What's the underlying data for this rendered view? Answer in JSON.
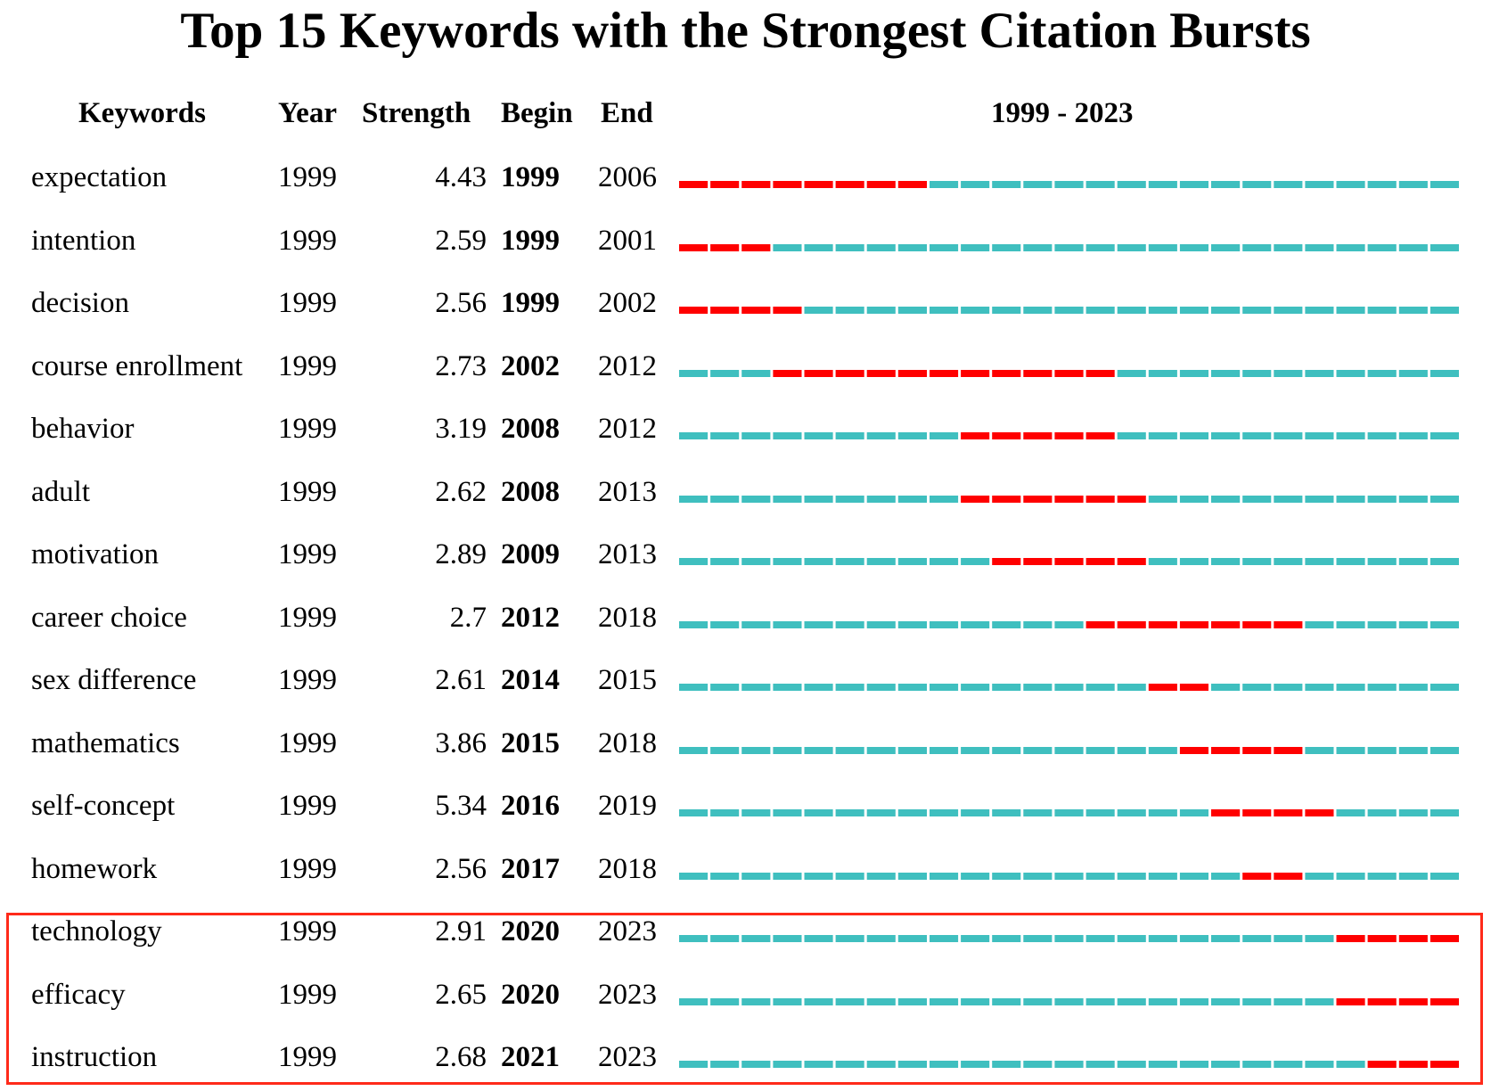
{
  "chart_data": {
    "type": "table",
    "title": "Top 15 Keywords with the Strongest Citation Bursts",
    "columns": [
      "Keywords",
      "Year",
      "Strength",
      "Begin",
      "End"
    ],
    "timeline_label": "1999 - 2023",
    "range": [
      1999,
      2023
    ],
    "colors": {
      "burst": "#ff0000",
      "baseline": "#3fbfbf",
      "highlight_border": "#ff2a1a"
    },
    "rows": [
      {
        "keyword": "expectation",
        "year": "1999",
        "strength": "4.43",
        "begin": "1999",
        "end": "2006"
      },
      {
        "keyword": "intention",
        "year": "1999",
        "strength": "2.59",
        "begin": "1999",
        "end": "2001"
      },
      {
        "keyword": "decision",
        "year": "1999",
        "strength": "2.56",
        "begin": "1999",
        "end": "2002"
      },
      {
        "keyword": "course enrollment",
        "year": "1999",
        "strength": "2.73",
        "begin": "2002",
        "end": "2012"
      },
      {
        "keyword": "behavior",
        "year": "1999",
        "strength": "3.19",
        "begin": "2008",
        "end": "2012"
      },
      {
        "keyword": "adult",
        "year": "1999",
        "strength": "2.62",
        "begin": "2008",
        "end": "2013"
      },
      {
        "keyword": "motivation",
        "year": "1999",
        "strength": "2.89",
        "begin": "2009",
        "end": "2013"
      },
      {
        "keyword": "career choice",
        "year": "1999",
        "strength": "2.7",
        "begin": "2012",
        "end": "2018"
      },
      {
        "keyword": "sex difference",
        "year": "1999",
        "strength": "2.61",
        "begin": "2014",
        "end": "2015"
      },
      {
        "keyword": "mathematics",
        "year": "1999",
        "strength": "3.86",
        "begin": "2015",
        "end": "2018"
      },
      {
        "keyword": "self-concept",
        "year": "1999",
        "strength": "5.34",
        "begin": "2016",
        "end": "2019"
      },
      {
        "keyword": "homework",
        "year": "1999",
        "strength": "2.56",
        "begin": "2017",
        "end": "2018"
      },
      {
        "keyword": "technology",
        "year": "1999",
        "strength": "2.91",
        "begin": "2020",
        "end": "2023"
      },
      {
        "keyword": "efficacy",
        "year": "1999",
        "strength": "2.65",
        "begin": "2020",
        "end": "2023"
      },
      {
        "keyword": "instruction",
        "year": "1999",
        "strength": "2.68",
        "begin": "2021",
        "end": "2023"
      }
    ],
    "highlighted_rows": [
      "technology",
      "efficacy",
      "instruction"
    ]
  }
}
